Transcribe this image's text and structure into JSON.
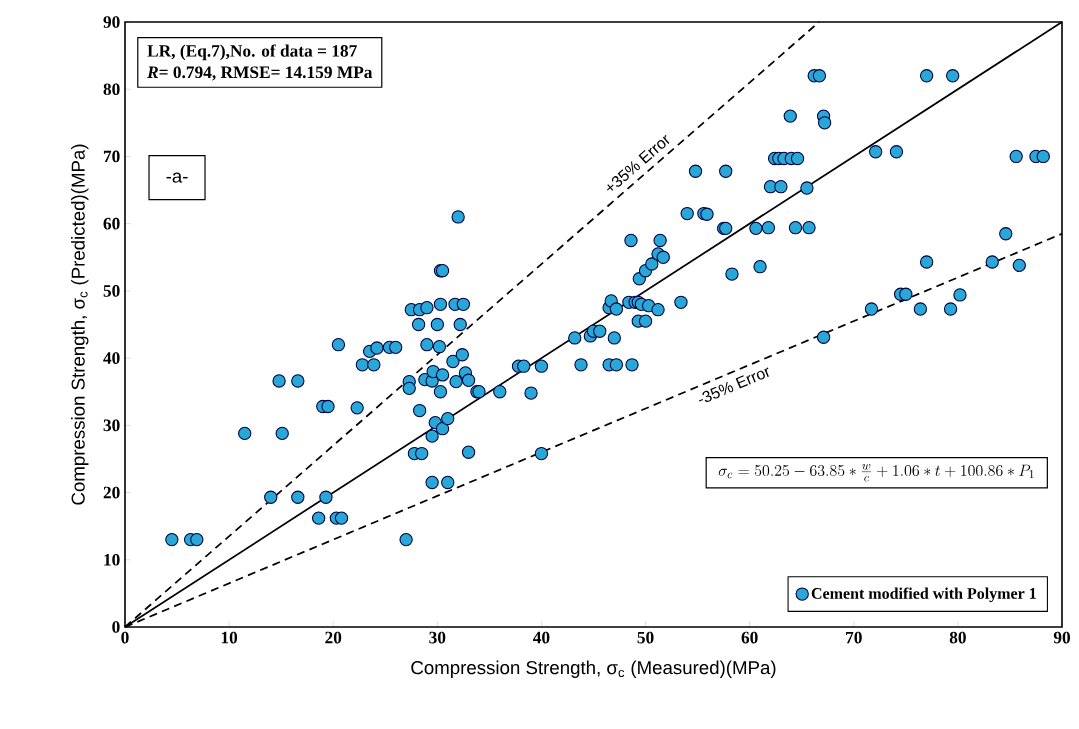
{
  "chart_data": {
    "type": "scatter",
    "xlabel": "Compression Strength, σ$_{c}$ (Measured)(MPa)",
    "ylabel": "Compression Strength, σ$_{c}$ (Predicted)(MPa)",
    "xlim": [
      0,
      90
    ],
    "ylim": [
      0,
      90
    ],
    "xticks": [
      0,
      10,
      20,
      30,
      40,
      50,
      60,
      70,
      80,
      90
    ],
    "yticks": [
      0,
      10,
      20,
      30,
      40,
      50,
      60,
      70,
      80,
      90
    ],
    "grid": false,
    "legend": "bottom right",
    "annotations": [
      "LR, (Eq.7),No. of data = 187",
      "*R*= 0.794, RMSE= 14.159 MPa",
      "-a-",
      "\\sigma_c = 50.25 - 63.85 * \\frac{w}{c} + 1.06 * t + 100.86 * P_1",
      {
        "text": "+35% Error",
        "x": 50,
        "y": 67.5
      },
      {
        "text": "-35% Error",
        "x": 58,
        "y": 37.7
      }
    ],
    "series": [
      {
        "name": "Cement modified with Polymer 1",
        "marker": "circle",
        "color": "#29a8d8",
        "x": [
          4.5,
          6.3,
          6.9,
          11.5,
          14.0,
          14.8,
          15.1,
          16.6,
          16.6,
          18.6,
          19.0,
          19.3,
          19.5,
          20.3,
          20.8,
          20.5,
          22.3,
          22.8,
          23.9,
          23.5,
          24.2,
          25.4,
          26,
          27,
          27.3,
          27.3,
          27.5,
          27.8,
          28.3,
          28.2,
          28.5,
          28.3,
          28.8,
          29,
          29.5,
          29,
          29.5,
          29.8,
          29.5,
          29.6,
          30,
          30.5,
          30.3,
          30.5,
          30.3,
          30.2,
          30.3,
          30.5,
          31,
          31,
          31.5,
          31.7,
          31.8,
          32,
          32.2,
          32.4,
          32.5,
          32.7,
          33,
          33,
          33.8,
          34,
          36,
          37.8,
          38.3,
          39,
          40,
          40,
          43.2,
          43.8,
          44.7,
          45,
          45.6,
          46.5,
          46.5,
          46.7,
          47,
          47.2,
          47.2,
          48.4,
          48.6,
          48.7,
          49,
          49.3,
          49.3,
          49.4,
          49.6,
          50,
          50,
          50.3,
          50.6,
          51.2,
          51.2,
          51.4,
          51.7,
          53.4,
          54,
          54.8,
          55.6,
          55.9,
          57.5,
          57.7,
          57.7,
          58.3,
          60.6,
          61,
          61.8,
          62,
          62.4,
          62.8,
          63,
          63.3,
          63.9,
          64,
          64.4,
          64.6,
          65.5,
          65.7,
          66.2,
          66.7,
          67.1,
          67.2,
          67.1,
          71.7,
          72.1,
          74.1,
          74.5,
          75,
          76.4,
          77,
          77,
          79.3,
          79.5,
          80.2,
          83.3,
          84.6,
          85.9,
          85.6,
          87.5,
          88.2
        ],
        "values": [
          13,
          13,
          13,
          28.8,
          19.3,
          36.6,
          28.8,
          36.6,
          19.3,
          16.2,
          32.8,
          19.3,
          32.8,
          16.2,
          16.2,
          42,
          32.6,
          39,
          39,
          41,
          41.5,
          41.6,
          41.6,
          13,
          36.5,
          35.5,
          47.2,
          25.8,
          47.2,
          45,
          25.8,
          32.2,
          36.8,
          42,
          36.6,
          47.5,
          21.5,
          30.4,
          28.4,
          38,
          45,
          37.5,
          53,
          53,
          48,
          41.7,
          35,
          29.5,
          31,
          21.5,
          39.5,
          48,
          36.5,
          61,
          45,
          40.5,
          48,
          37.8,
          26,
          36.7,
          35,
          35,
          35,
          38.8,
          38.8,
          34.8,
          38.8,
          25.8,
          43,
          39,
          43.3,
          44,
          44,
          39,
          47.5,
          48.5,
          43,
          39,
          47.3,
          48.3,
          57.5,
          39,
          48.3,
          48.3,
          45.5,
          51.8,
          48,
          45.5,
          53,
          47.8,
          54,
          47.2,
          55.5,
          57.5,
          55,
          48.3,
          61.5,
          67.8,
          61.5,
          61.4,
          59.3,
          59.3,
          67.8,
          52.5,
          59.3,
          53.6,
          59.4,
          65.5,
          69.7,
          69.7,
          65.5,
          69.7,
          76,
          69.7,
          59.4,
          69.7,
          65.3,
          59.4,
          82,
          82,
          76,
          75,
          43.1,
          47.3,
          70.7,
          70.7,
          49.5,
          49.5,
          47.3,
          82,
          54.3,
          47.3,
          82,
          49.4,
          54.3,
          58.5,
          53.8,
          70,
          70,
          70
        ]
      },
      {
        "type": "line",
        "marker": "none",
        "color": "#000000",
        "line_style": "solid",
        "x": [
          0,
          90
        ],
        "values": [
          0,
          90
        ]
      },
      {
        "type": "line",
        "marker": "none",
        "color": "#000000",
        "line_style": "dashed",
        "x": [
          0,
          66.67
        ],
        "values": [
          0,
          90
        ]
      },
      {
        "type": "line",
        "marker": "none",
        "color": "#000000",
        "line_style": "dashed",
        "x": [
          0,
          90
        ],
        "values": [
          0,
          58.5
        ]
      }
    ]
  }
}
